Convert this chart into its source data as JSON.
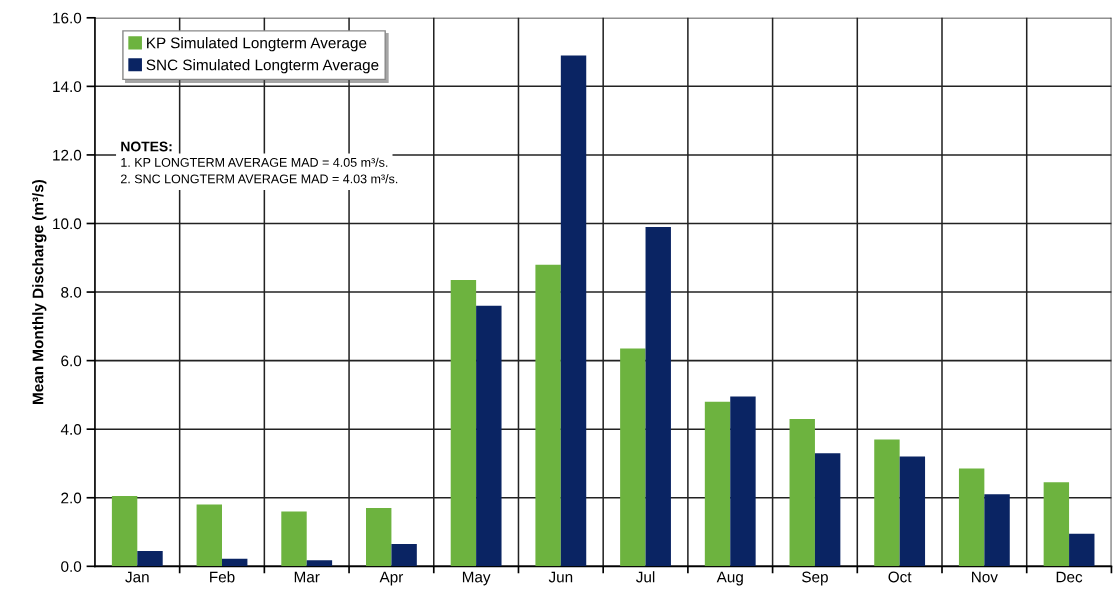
{
  "chart_data": {
    "type": "bar",
    "ylabel": "Mean Monthly Discharge (m³/s)",
    "categories": [
      "Jan",
      "Feb",
      "Mar",
      "Apr",
      "May",
      "Jun",
      "Jul",
      "Aug",
      "Sep",
      "Oct",
      "Nov",
      "Dec"
    ],
    "series": [
      {
        "name": "KP Simulated Longterm Average",
        "color": "#6db33f",
        "values": [
          2.05,
          1.8,
          1.6,
          1.7,
          8.35,
          8.8,
          6.35,
          4.8,
          4.3,
          3.7,
          2.85,
          2.45
        ]
      },
      {
        "name": "SNC Simulated Longterm Average",
        "color": "#0a2463",
        "values": [
          0.45,
          0.22,
          0.18,
          0.65,
          7.6,
          14.9,
          9.9,
          4.95,
          3.3,
          3.2,
          2.1,
          0.95
        ]
      }
    ],
    "ylim": [
      0,
      16
    ],
    "yticks": [
      {
        "value": 0,
        "label": "0.0"
      },
      {
        "value": 2,
        "label": "2.0"
      },
      {
        "value": 4,
        "label": "4.0"
      },
      {
        "value": 6,
        "label": "6.0"
      },
      {
        "value": 8,
        "label": "8.0"
      },
      {
        "value": 10,
        "label": "10.0"
      },
      {
        "value": 12,
        "label": "12.0"
      },
      {
        "value": 14,
        "label": "14.0"
      },
      {
        "value": 16,
        "label": "16.0"
      }
    ],
    "grid": true,
    "legend": "top left",
    "annotations": [
      "NOTES:",
      "1. KP LONGTERM AVERAGE MAD = 4.05 m³/s.",
      "2. SNC LONGTERM AVERAGE MAD = 4.03 m³/s."
    ]
  }
}
